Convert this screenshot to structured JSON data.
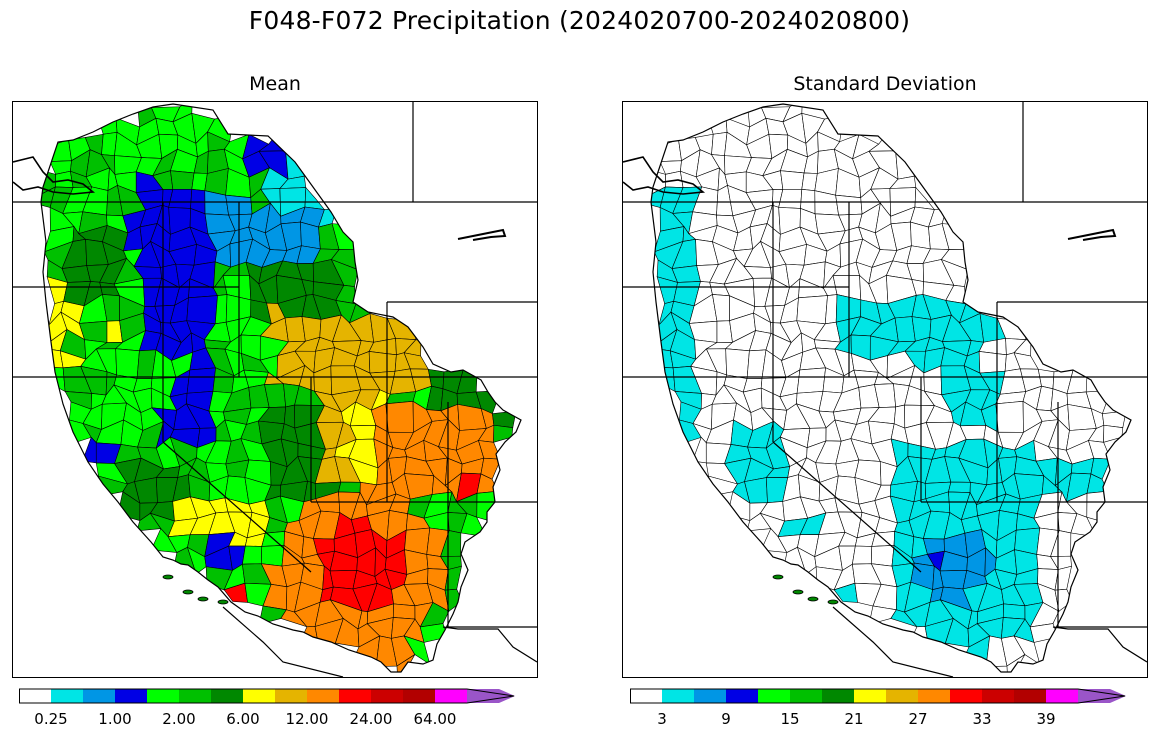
{
  "figure": {
    "title": "F048-F072 Precipitation (2024020700-2024020800)"
  },
  "panels": [
    {
      "title": "Mean",
      "colorbar": {
        "colors": [
          "#ffffff",
          "#00e5e5",
          "#0096e5",
          "#0000e5",
          "#00ff00",
          "#00c000",
          "#008800",
          "#ffff00",
          "#e5b400",
          "#ff8800",
          "#ff0000",
          "#cc0000",
          "#b20000",
          "#ff00ff",
          "#9a55c8"
        ],
        "tick_labels": [
          "0.25",
          "1.00",
          "2.00",
          "6.00",
          "12.00",
          "24.00",
          "64.00"
        ],
        "tick_boundary_index": [
          1,
          3,
          5,
          7,
          9,
          11,
          13
        ]
      }
    },
    {
      "title": "Standard Deviation",
      "colorbar": {
        "colors": [
          "#ffffff",
          "#00e5e5",
          "#0096e5",
          "#0000e5",
          "#00ff00",
          "#00c000",
          "#008800",
          "#ffff00",
          "#e5b400",
          "#ff8800",
          "#ff0000",
          "#cc0000",
          "#b20000",
          "#ff00ff",
          "#9a55c8"
        ],
        "tick_labels": [
          "3",
          "9",
          "15",
          "21",
          "27",
          "33",
          "39"
        ],
        "tick_boundary_index": [
          1,
          3,
          5,
          7,
          9,
          11,
          13
        ]
      }
    }
  ],
  "region_colors": {
    "mean_fill": [
      "#00c000",
      "#008800",
      "#00ff00",
      "#0000e5",
      "#0096e5",
      "#00e5e5",
      "#ffff00",
      "#e5b400",
      "#ff8800",
      "#ff0000",
      "#cc0000"
    ],
    "std_fill": [
      "#ffffff",
      "#00e5e5",
      "#0096e5",
      "#0000e5"
    ]
  }
}
